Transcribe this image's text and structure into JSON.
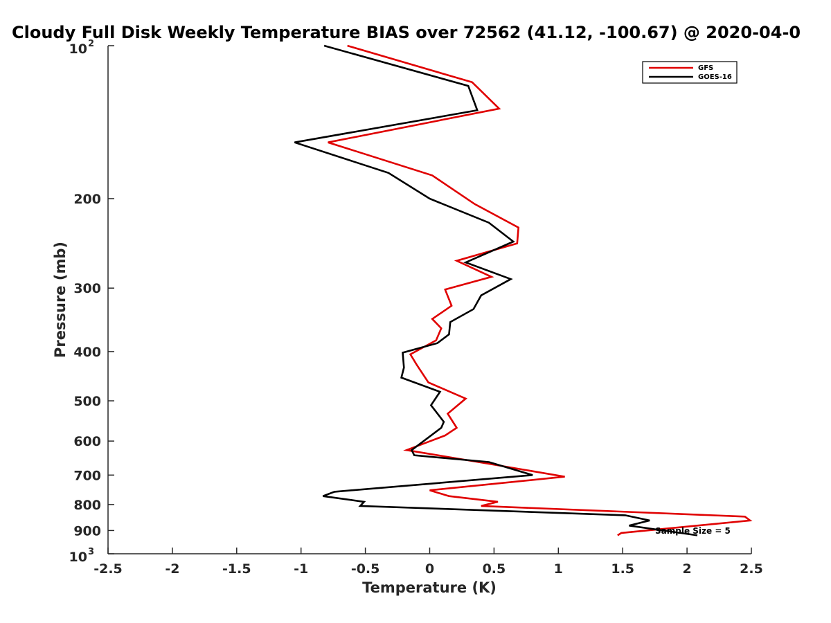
{
  "chart_data": {
    "type": "line",
    "title": "Cloudy Full Disk Weekly Temperature BIAS over 72562 (41.12, -100.67) @ 2020-04-0",
    "xlabel": "Temperature (K)",
    "ylabel": "Pressure (mb)",
    "xlim": [
      -2.5,
      2.5
    ],
    "ylim": [
      1000,
      100
    ],
    "y_scale": "log",
    "x_ticks": [
      "-2.5",
      "-2",
      "-1.5",
      "-1",
      "-0.5",
      "0",
      "0.5",
      "1",
      "1.5",
      "2",
      "2.5"
    ],
    "y_ticks": [
      {
        "value": 100,
        "base": "10",
        "exp": "2"
      },
      {
        "value": 200,
        "label": "200"
      },
      {
        "value": 300,
        "label": "300"
      },
      {
        "value": 400,
        "label": "400"
      },
      {
        "value": 500,
        "label": "500"
      },
      {
        "value": 600,
        "label": "600"
      },
      {
        "value": 700,
        "label": "700"
      },
      {
        "value": 800,
        "label": "800"
      },
      {
        "value": 900,
        "label": "900"
      },
      {
        "value": 1000,
        "base": "10",
        "exp": "3"
      }
    ],
    "grid": false,
    "legend": {
      "position": "top-right",
      "entries": [
        "GFS",
        "GOES-16"
      ]
    },
    "annotation": "Sample Size = 5",
    "series": [
      {
        "name": "GFS",
        "color": "#e00000",
        "points": [
          {
            "t": -0.64,
            "p": 100
          },
          {
            "t": 0.33,
            "p": 118
          },
          {
            "t": 0.54,
            "p": 133
          },
          {
            "t": -0.79,
            "p": 155
          },
          {
            "t": 0.02,
            "p": 180
          },
          {
            "t": 0.35,
            "p": 205
          },
          {
            "t": 0.69,
            "p": 228
          },
          {
            "t": 0.68,
            "p": 245
          },
          {
            "t": 0.21,
            "p": 265
          },
          {
            "t": 0.48,
            "p": 285
          },
          {
            "t": 0.12,
            "p": 302
          },
          {
            "t": 0.17,
            "p": 325
          },
          {
            "t": 0.02,
            "p": 345
          },
          {
            "t": 0.09,
            "p": 360
          },
          {
            "t": 0.05,
            "p": 380
          },
          {
            "t": -0.15,
            "p": 405
          },
          {
            "t": -0.1,
            "p": 425
          },
          {
            "t": -0.01,
            "p": 460
          },
          {
            "t": 0.28,
            "p": 495
          },
          {
            "t": 0.14,
            "p": 530
          },
          {
            "t": 0.21,
            "p": 565
          },
          {
            "t": 0.12,
            "p": 585
          },
          {
            "t": -0.18,
            "p": 625
          },
          {
            "t": 0.46,
            "p": 665
          },
          {
            "t": 1.05,
            "p": 705
          },
          {
            "t": 0.0,
            "p": 750
          },
          {
            "t": 0.15,
            "p": 770
          },
          {
            "t": 0.53,
            "p": 790
          },
          {
            "t": 0.4,
            "p": 805
          },
          {
            "t": 2.45,
            "p": 845
          },
          {
            "t": 2.49,
            "p": 860
          },
          {
            "t": 1.49,
            "p": 910
          },
          {
            "t": 1.46,
            "p": 920
          }
        ]
      },
      {
        "name": "GOES-16",
        "color": "#000000",
        "points": [
          {
            "t": -0.82,
            "p": 100
          },
          {
            "t": 0.3,
            "p": 120
          },
          {
            "t": 0.37,
            "p": 134
          },
          {
            "t": -1.05,
            "p": 155
          },
          {
            "t": -0.32,
            "p": 178
          },
          {
            "t": 0.0,
            "p": 200
          },
          {
            "t": 0.46,
            "p": 223
          },
          {
            "t": 0.65,
            "p": 243
          },
          {
            "t": 0.28,
            "p": 267
          },
          {
            "t": 0.63,
            "p": 288
          },
          {
            "t": 0.4,
            "p": 310
          },
          {
            "t": 0.34,
            "p": 330
          },
          {
            "t": 0.16,
            "p": 350
          },
          {
            "t": 0.15,
            "p": 370
          },
          {
            "t": 0.06,
            "p": 385
          },
          {
            "t": -0.21,
            "p": 402
          },
          {
            "t": -0.2,
            "p": 430
          },
          {
            "t": -0.22,
            "p": 450
          },
          {
            "t": 0.08,
            "p": 480
          },
          {
            "t": 0.01,
            "p": 510
          },
          {
            "t": 0.11,
            "p": 550
          },
          {
            "t": 0.09,
            "p": 565
          },
          {
            "t": -0.14,
            "p": 625
          },
          {
            "t": -0.12,
            "p": 640
          },
          {
            "t": 0.46,
            "p": 660
          },
          {
            "t": 0.8,
            "p": 700
          },
          {
            "t": -0.74,
            "p": 755
          },
          {
            "t": -0.83,
            "p": 770
          },
          {
            "t": -0.51,
            "p": 790
          },
          {
            "t": -0.54,
            "p": 805
          },
          {
            "t": 1.52,
            "p": 840
          },
          {
            "t": 1.71,
            "p": 860
          },
          {
            "t": 1.55,
            "p": 880
          },
          {
            "t": 2.08,
            "p": 920
          }
        ]
      }
    ]
  }
}
